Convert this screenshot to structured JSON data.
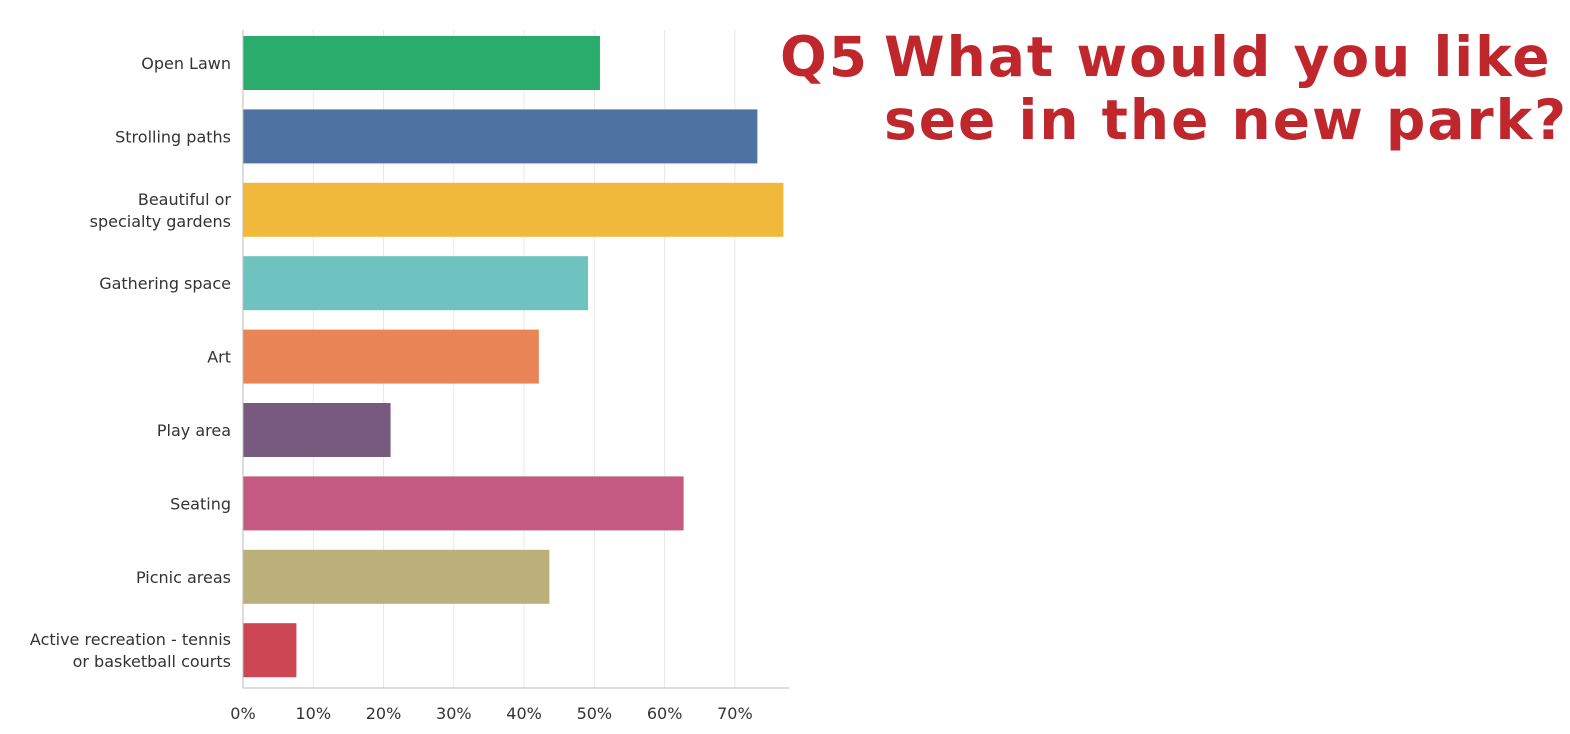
{
  "title": {
    "number": "Q5",
    "line1": "What would you like to",
    "line2": "see in the new park?"
  },
  "chart_data": {
    "type": "bar",
    "orientation": "horizontal",
    "categories": [
      [
        "Open Lawn"
      ],
      [
        "Strolling paths"
      ],
      [
        "Beautiful or",
        "specialty gardens"
      ],
      [
        "Gathering space"
      ],
      [
        "Art"
      ],
      [
        "Play area"
      ],
      [
        "Seating"
      ],
      [
        "Picnic areas"
      ],
      [
        "Active recreation - tennis",
        "or basketball courts"
      ]
    ],
    "values": [
      50.8,
      73.2,
      76.9,
      49.1,
      42.1,
      21.0,
      62.7,
      43.6,
      7.6
    ],
    "colors": [
      "#2aac6d",
      "#4e73a2",
      "#f0b93b",
      "#6ec3c0",
      "#e98456",
      "#775a7e",
      "#c45981",
      "#bcb07a",
      "#cc4653"
    ],
    "xlim": [
      0,
      77.7
    ],
    "xticks": [
      0,
      10,
      20,
      30,
      40,
      50,
      60,
      70
    ],
    "xtick_labels": [
      "0%",
      "10%",
      "20%",
      "30%",
      "40%",
      "50%",
      "60%",
      "70%"
    ],
    "grid": true,
    "gridline_color": "#e8e8e8",
    "axis_color": "#bbbbbb"
  }
}
